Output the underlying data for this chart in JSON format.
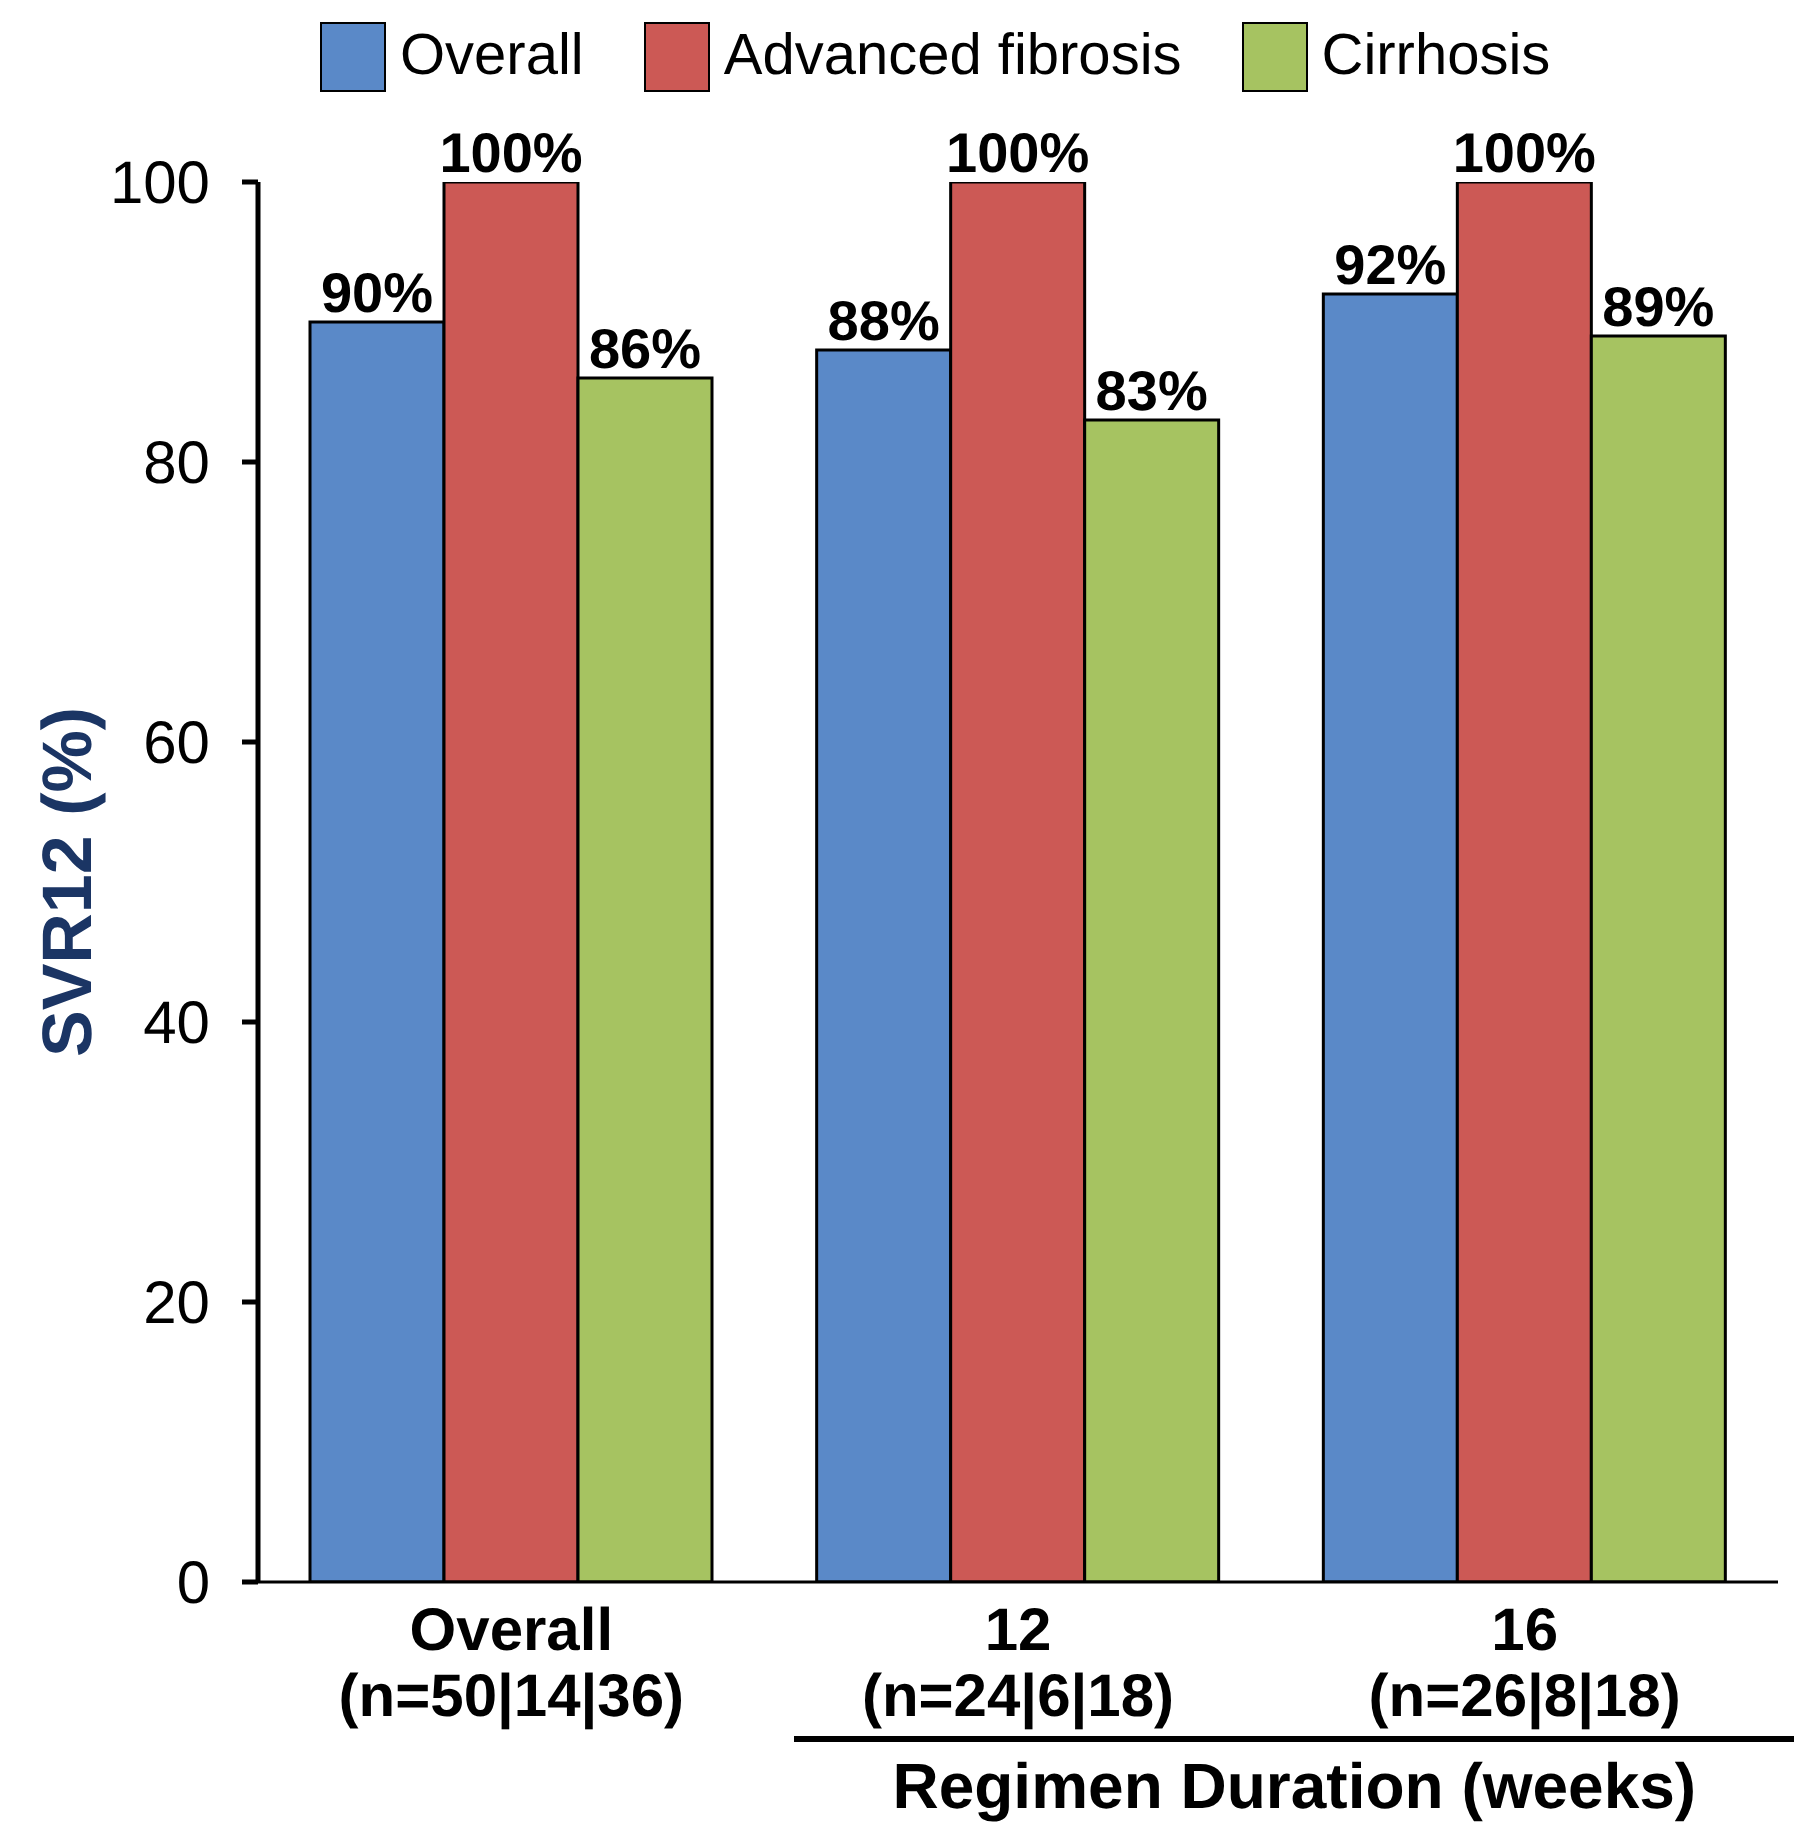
{
  "chart_data": {
    "type": "bar",
    "legend": "top",
    "ylabel": "SVR12 (%)",
    "ylim": [
      0,
      100
    ],
    "yticks": [
      0,
      20,
      40,
      60,
      80,
      100
    ],
    "categories": [
      "Overall\n(n=50|14|36)",
      "12\n(n=24|6|18)",
      "16\n(n=26|8|18)"
    ],
    "series": [
      {
        "name": "Overall",
        "color": "#5a89c8",
        "values": [
          90,
          88,
          92
        ],
        "value_labels": [
          "90%",
          "88%",
          "92%"
        ]
      },
      {
        "name": "Advanced fibrosis",
        "color": "#cc5955",
        "values": [
          100,
          100,
          100
        ],
        "value_labels": [
          "100%",
          "100%",
          "100%"
        ]
      },
      {
        "name": "Cirrhosis",
        "color": "#a6c361",
        "values": [
          86,
          83,
          89
        ],
        "value_labels": [
          "86%",
          "83%",
          "89%"
        ]
      }
    ],
    "annotations": [
      "Regimen Duration (weeks)"
    ]
  }
}
